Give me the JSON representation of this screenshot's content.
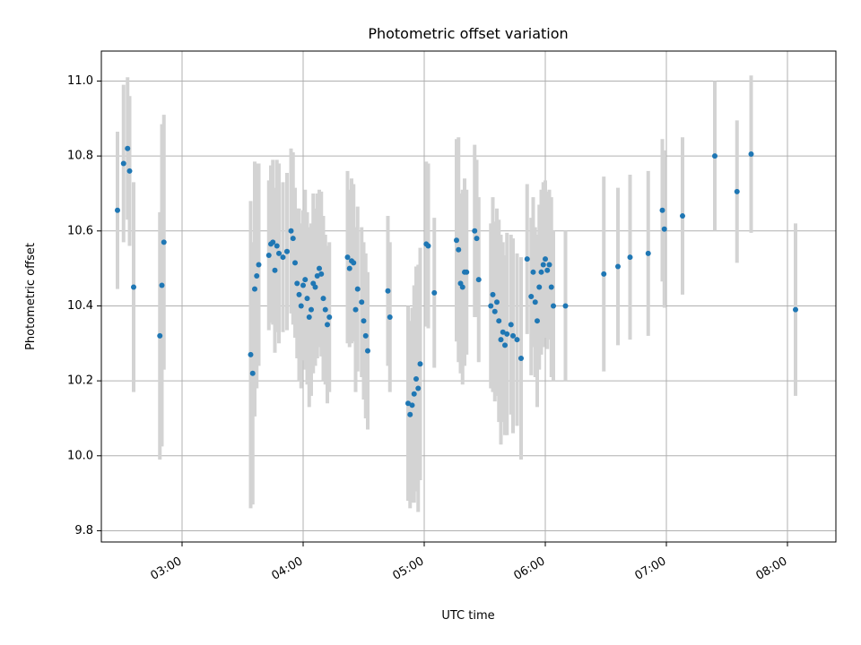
{
  "chart_data": {
    "type": "scatter",
    "title": "Photometric offset variation",
    "xlabel": "UTC time",
    "ylabel": "Photometric offset",
    "xlim": [
      "02:20",
      "08:24"
    ],
    "ylim": [
      9.77,
      11.08
    ],
    "xticks": [
      "03:00",
      "04:00",
      "05:00",
      "06:00",
      "07:00",
      "08:00"
    ],
    "yticks": [
      "9.8",
      "10.0",
      "10.2",
      "10.4",
      "10.6",
      "10.8",
      "11.0"
    ],
    "grid": true,
    "colors": {
      "points": "#1f77b4",
      "errorbars": "#d3d3d3",
      "grid": "#b0b0b0"
    },
    "points": [
      [
        "02:28",
        10.655,
        0.21
      ],
      [
        "02:31",
        10.78,
        0.21
      ],
      [
        "02:33",
        10.82,
        0.19
      ],
      [
        "02:34",
        10.76,
        0.2
      ],
      [
        "02:36",
        10.45,
        0.28
      ],
      [
        "02:49",
        10.32,
        0.33
      ],
      [
        "02:50",
        10.455,
        0.43
      ],
      [
        "02:51",
        10.57,
        0.34
      ],
      [
        "03:34",
        10.27,
        0.41
      ],
      [
        "03:35",
        10.22,
        0.35
      ],
      [
        "03:36",
        10.445,
        0.34
      ],
      [
        "03:37",
        10.48,
        0.3
      ],
      [
        "03:38",
        10.51,
        0.27
      ],
      [
        "03:43",
        10.535,
        0.2
      ],
      [
        "03:44",
        10.565,
        0.21
      ],
      [
        "03:45",
        10.57,
        0.22
      ],
      [
        "03:46",
        10.495,
        0.22
      ],
      [
        "03:47",
        10.56,
        0.23
      ],
      [
        "03:48",
        10.54,
        0.24
      ],
      [
        "03:50",
        10.53,
        0.2
      ],
      [
        "03:52",
        10.545,
        0.21
      ],
      [
        "03:54",
        10.6,
        0.22
      ],
      [
        "03:55",
        10.58,
        0.23
      ],
      [
        "03:56",
        10.515,
        0.2
      ],
      [
        "03:57",
        10.46,
        0.2
      ],
      [
        "03:58",
        10.43,
        0.23
      ],
      [
        "03:59",
        10.4,
        0.22
      ],
      [
        "04:00",
        10.455,
        0.2
      ],
      [
        "04:01",
        10.47,
        0.24
      ],
      [
        "04:02",
        10.42,
        0.23
      ],
      [
        "04:03",
        10.37,
        0.24
      ],
      [
        "04:04",
        10.39,
        0.23
      ],
      [
        "04:05",
        10.46,
        0.24
      ],
      [
        "04:06",
        10.45,
        0.21
      ],
      [
        "04:07",
        10.48,
        0.22
      ],
      [
        "04:08",
        10.5,
        0.21
      ],
      [
        "04:09",
        10.485,
        0.22
      ],
      [
        "04:10",
        10.42,
        0.22
      ],
      [
        "04:11",
        10.39,
        0.2
      ],
      [
        "04:12",
        10.35,
        0.21
      ],
      [
        "04:13",
        10.37,
        0.2
      ],
      [
        "04:22",
        10.53,
        0.23
      ],
      [
        "04:23",
        10.5,
        0.21
      ],
      [
        "04:24",
        10.52,
        0.22
      ],
      [
        "04:25",
        10.515,
        0.21
      ],
      [
        "04:26",
        10.39,
        0.22
      ],
      [
        "04:27",
        10.445,
        0.22
      ],
      [
        "04:29",
        10.41,
        0.2
      ],
      [
        "04:30",
        10.36,
        0.21
      ],
      [
        "04:31",
        10.32,
        0.22
      ],
      [
        "04:32",
        10.28,
        0.21
      ],
      [
        "04:42",
        10.44,
        0.2
      ],
      [
        "04:43",
        10.37,
        0.2
      ],
      [
        "04:52",
        10.14,
        0.26
      ],
      [
        "04:53",
        10.11,
        0.25
      ],
      [
        "04:54",
        10.135,
        0.26
      ],
      [
        "04:55",
        10.165,
        0.29
      ],
      [
        "04:56",
        10.205,
        0.3
      ],
      [
        "04:57",
        10.18,
        0.33
      ],
      [
        "04:58",
        10.245,
        0.31
      ],
      [
        "05:01",
        10.565,
        0.22
      ],
      [
        "05:02",
        10.56,
        0.22
      ],
      [
        "05:05",
        10.435,
        0.2
      ],
      [
        "05:16",
        10.575,
        0.27
      ],
      [
        "05:17",
        10.55,
        0.3
      ],
      [
        "05:18",
        10.46,
        0.24
      ],
      [
        "05:19",
        10.45,
        0.26
      ],
      [
        "05:20",
        10.49,
        0.25
      ],
      [
        "05:21",
        10.49,
        0.22
      ],
      [
        "05:25",
        10.6,
        0.23
      ],
      [
        "05:26",
        10.58,
        0.21
      ],
      [
        "05:27",
        10.47,
        0.22
      ],
      [
        "05:33",
        10.4,
        0.22
      ],
      [
        "05:34",
        10.43,
        0.26
      ],
      [
        "05:35",
        10.385,
        0.24
      ],
      [
        "05:36",
        10.41,
        0.25
      ],
      [
        "05:37",
        10.36,
        0.27
      ],
      [
        "05:38",
        10.31,
        0.28
      ],
      [
        "05:39",
        10.33,
        0.24
      ],
      [
        "05:40",
        10.295,
        0.24
      ],
      [
        "05:41",
        10.325,
        0.27
      ],
      [
        "05:43",
        10.35,
        0.24
      ],
      [
        "05:44",
        10.32,
        0.26
      ],
      [
        "05:46",
        10.31,
        0.23
      ],
      [
        "05:48",
        10.26,
        0.27
      ],
      [
        "05:51",
        10.525,
        0.2
      ],
      [
        "05:53",
        10.425,
        0.21
      ],
      [
        "05:54",
        10.49,
        0.2
      ],
      [
        "05:55",
        10.41,
        0.2
      ],
      [
        "05:56",
        10.36,
        0.23
      ],
      [
        "05:57",
        10.45,
        0.22
      ],
      [
        "05:58",
        10.49,
        0.22
      ],
      [
        "05:59",
        10.51,
        0.22
      ],
      [
        "06:00",
        10.525,
        0.21
      ],
      [
        "06:01",
        10.495,
        0.21
      ],
      [
        "06:02",
        10.51,
        0.2
      ],
      [
        "06:03",
        10.45,
        0.24
      ],
      [
        "06:04",
        10.4,
        0.2
      ],
      [
        "06:10",
        10.4,
        0.2
      ],
      [
        "06:29",
        10.485,
        0.26
      ],
      [
        "06:36",
        10.505,
        0.21
      ],
      [
        "06:42",
        10.53,
        0.22
      ],
      [
        "06:51",
        10.54,
        0.22
      ],
      [
        "06:58",
        10.655,
        0.19
      ],
      [
        "06:59",
        10.605,
        0.21
      ],
      [
        "07:08",
        10.64,
        0.21
      ],
      [
        "07:24",
        10.8,
        0.2
      ],
      [
        "07:35",
        10.705,
        0.19
      ],
      [
        "07:42",
        10.805,
        0.21
      ],
      [
        "08:04",
        10.39,
        0.23
      ]
    ]
  }
}
